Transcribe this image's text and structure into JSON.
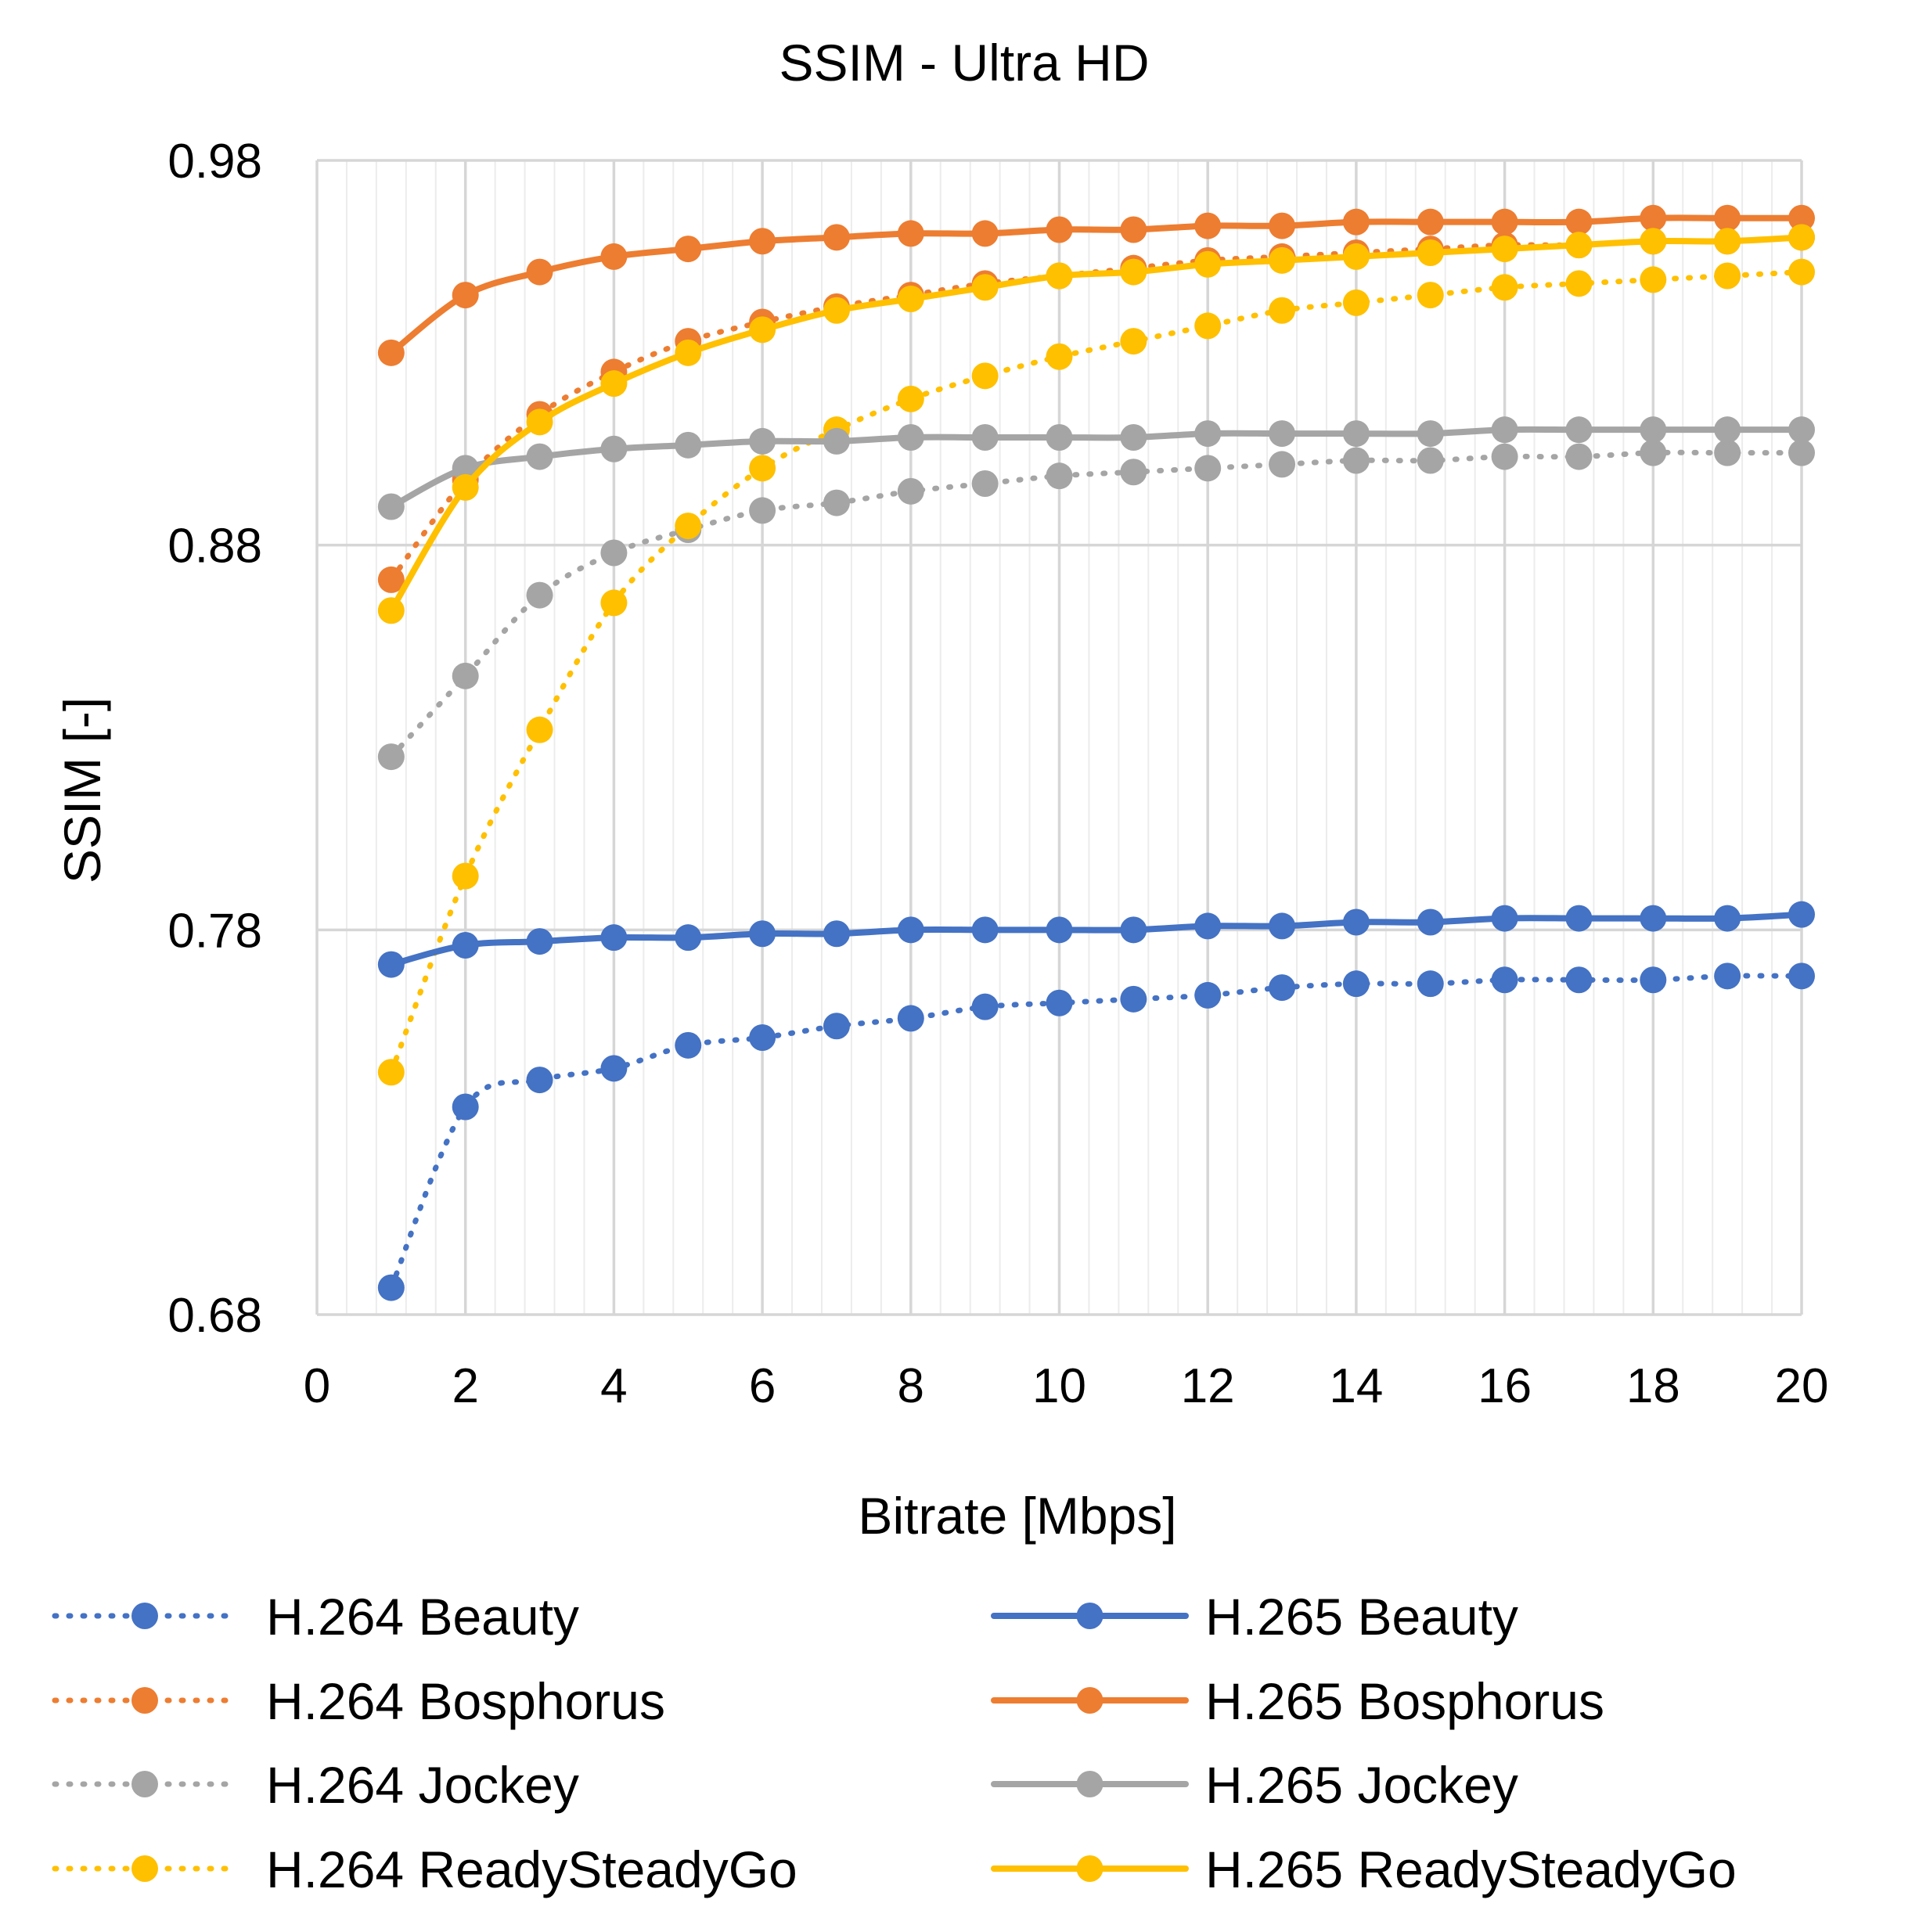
{
  "chart_data": {
    "type": "line",
    "title": "SSIM - Ultra HD",
    "xlabel": "Bitrate [Mbps]",
    "ylabel": "SSIM [-]",
    "xlim": [
      0,
      20
    ],
    "ylim": [
      0.68,
      0.98
    ],
    "x_ticks": [
      0,
      2,
      4,
      6,
      8,
      10,
      12,
      14,
      16,
      18,
      20
    ],
    "x_tick_labels": [
      "0",
      "2",
      "4",
      "6",
      "8",
      "10",
      "12",
      "14",
      "16",
      "18",
      "20"
    ],
    "y_ticks": [
      0.68,
      0.78,
      0.88,
      0.98
    ],
    "y_tick_labels": [
      "0.68",
      "0.78",
      "0.88",
      "0.98"
    ],
    "x_minor_step": 0.4,
    "grid": true,
    "legend_position": "bottom",
    "x": [
      1,
      2,
      3,
      4,
      5,
      6,
      7,
      8,
      9,
      10,
      11,
      12,
      13,
      14,
      15,
      16,
      17,
      18,
      19,
      20
    ],
    "series": [
      {
        "name": "H.264 Beauty",
        "codec": "H.264",
        "style": "dotted",
        "color": "#4472C4",
        "values": [
          0.687,
          0.734,
          0.741,
          0.744,
          0.75,
          0.752,
          0.755,
          0.757,
          0.76,
          0.761,
          0.762,
          0.763,
          0.765,
          0.766,
          0.766,
          0.767,
          0.767,
          0.767,
          0.768,
          0.768
        ]
      },
      {
        "name": "H.264 Bosphorus",
        "codec": "H.264",
        "style": "dotted",
        "color": "#ED7D31",
        "values": [
          0.871,
          0.897,
          0.914,
          0.925,
          0.933,
          0.938,
          0.942,
          0.945,
          0.948,
          0.95,
          0.952,
          0.954,
          0.955,
          0.956,
          0.957,
          0.958,
          0.958,
          0.959,
          0.959,
          0.96
        ]
      },
      {
        "name": "H.264 Jockey",
        "codec": "H.264",
        "style": "dotted",
        "color": "#A5A5A5",
        "values": [
          0.825,
          0.846,
          0.867,
          0.878,
          0.884,
          0.889,
          0.891,
          0.894,
          0.896,
          0.898,
          0.899,
          0.9,
          0.901,
          0.902,
          0.902,
          0.903,
          0.903,
          0.904,
          0.904,
          0.904
        ]
      },
      {
        "name": "H.264 ReadySteadyGo",
        "codec": "H.264",
        "style": "dotted",
        "color": "#FFC000",
        "values": [
          0.743,
          0.794,
          0.832,
          0.865,
          0.885,
          0.9,
          0.91,
          0.918,
          0.924,
          0.929,
          0.933,
          0.937,
          0.941,
          0.943,
          0.945,
          0.947,
          0.948,
          0.949,
          0.95,
          0.951
        ]
      },
      {
        "name": "H.265 Beauty",
        "codec": "H.265",
        "style": "solid",
        "color": "#4472C4",
        "values": [
          0.771,
          0.776,
          0.777,
          0.778,
          0.778,
          0.779,
          0.779,
          0.78,
          0.78,
          0.78,
          0.78,
          0.781,
          0.781,
          0.782,
          0.782,
          0.783,
          0.783,
          0.783,
          0.783,
          0.784
        ]
      },
      {
        "name": "H.265 Bosphorus",
        "codec": "H.265",
        "style": "solid",
        "color": "#ED7D31",
        "values": [
          0.93,
          0.945,
          0.951,
          0.955,
          0.957,
          0.959,
          0.96,
          0.961,
          0.961,
          0.962,
          0.962,
          0.963,
          0.963,
          0.964,
          0.964,
          0.964,
          0.964,
          0.965,
          0.965,
          0.965
        ]
      },
      {
        "name": "H.265 Jockey",
        "codec": "H.265",
        "style": "solid",
        "color": "#A5A5A5",
        "values": [
          0.89,
          0.9,
          0.903,
          0.905,
          0.906,
          0.907,
          0.907,
          0.908,
          0.908,
          0.908,
          0.908,
          0.909,
          0.909,
          0.909,
          0.909,
          0.91,
          0.91,
          0.91,
          0.91,
          0.91
        ]
      },
      {
        "name": "H.265 ReadySteadyGo",
        "codec": "H.265",
        "style": "solid",
        "color": "#FFC000",
        "values": [
          0.863,
          0.895,
          0.912,
          0.922,
          0.93,
          0.936,
          0.941,
          0.944,
          0.947,
          0.95,
          0.951,
          0.953,
          0.954,
          0.955,
          0.956,
          0.957,
          0.958,
          0.959,
          0.959,
          0.96
        ]
      }
    ]
  }
}
